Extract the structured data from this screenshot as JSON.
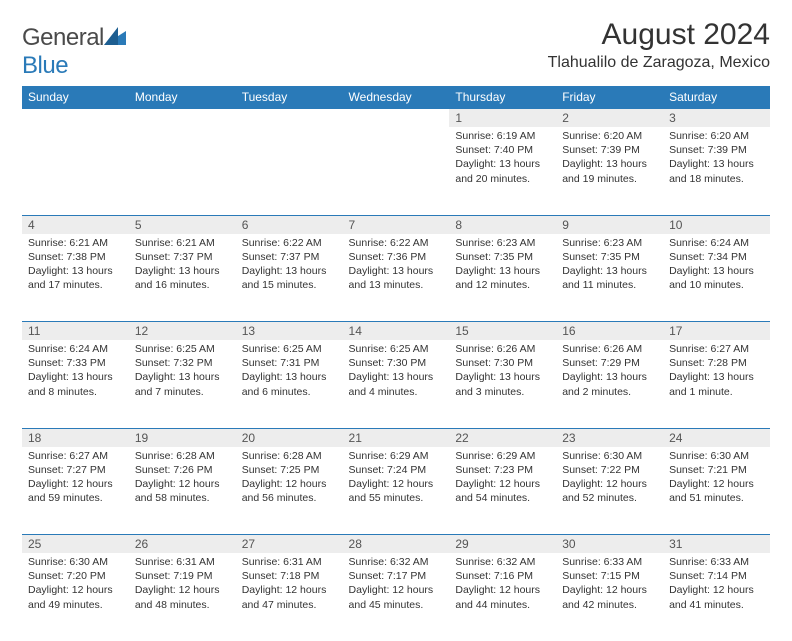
{
  "brand": {
    "name_a": "General",
    "name_b": "Blue"
  },
  "header": {
    "title": "August 2024",
    "location": "Tlahualilo de Zaragoza, Mexico"
  },
  "colors": {
    "accent": "#2a7ab8",
    "header_bg": "#2a7ab8",
    "daynum_bg": "#ededed",
    "text": "#333333"
  },
  "weekdays": [
    "Sunday",
    "Monday",
    "Tuesday",
    "Wednesday",
    "Thursday",
    "Friday",
    "Saturday"
  ],
  "weeks": [
    {
      "nums": [
        "",
        "",
        "",
        "",
        "1",
        "2",
        "3"
      ],
      "cells": [
        null,
        null,
        null,
        null,
        {
          "sunrise": "Sunrise: 6:19 AM",
          "sunset": "Sunset: 7:40 PM",
          "daylight": "Daylight: 13 hours and 20 minutes."
        },
        {
          "sunrise": "Sunrise: 6:20 AM",
          "sunset": "Sunset: 7:39 PM",
          "daylight": "Daylight: 13 hours and 19 minutes."
        },
        {
          "sunrise": "Sunrise: 6:20 AM",
          "sunset": "Sunset: 7:39 PM",
          "daylight": "Daylight: 13 hours and 18 minutes."
        }
      ]
    },
    {
      "nums": [
        "4",
        "5",
        "6",
        "7",
        "8",
        "9",
        "10"
      ],
      "cells": [
        {
          "sunrise": "Sunrise: 6:21 AM",
          "sunset": "Sunset: 7:38 PM",
          "daylight": "Daylight: 13 hours and 17 minutes."
        },
        {
          "sunrise": "Sunrise: 6:21 AM",
          "sunset": "Sunset: 7:37 PM",
          "daylight": "Daylight: 13 hours and 16 minutes."
        },
        {
          "sunrise": "Sunrise: 6:22 AM",
          "sunset": "Sunset: 7:37 PM",
          "daylight": "Daylight: 13 hours and 15 minutes."
        },
        {
          "sunrise": "Sunrise: 6:22 AM",
          "sunset": "Sunset: 7:36 PM",
          "daylight": "Daylight: 13 hours and 13 minutes."
        },
        {
          "sunrise": "Sunrise: 6:23 AM",
          "sunset": "Sunset: 7:35 PM",
          "daylight": "Daylight: 13 hours and 12 minutes."
        },
        {
          "sunrise": "Sunrise: 6:23 AM",
          "sunset": "Sunset: 7:35 PM",
          "daylight": "Daylight: 13 hours and 11 minutes."
        },
        {
          "sunrise": "Sunrise: 6:24 AM",
          "sunset": "Sunset: 7:34 PM",
          "daylight": "Daylight: 13 hours and 10 minutes."
        }
      ]
    },
    {
      "nums": [
        "11",
        "12",
        "13",
        "14",
        "15",
        "16",
        "17"
      ],
      "cells": [
        {
          "sunrise": "Sunrise: 6:24 AM",
          "sunset": "Sunset: 7:33 PM",
          "daylight": "Daylight: 13 hours and 8 minutes."
        },
        {
          "sunrise": "Sunrise: 6:25 AM",
          "sunset": "Sunset: 7:32 PM",
          "daylight": "Daylight: 13 hours and 7 minutes."
        },
        {
          "sunrise": "Sunrise: 6:25 AM",
          "sunset": "Sunset: 7:31 PM",
          "daylight": "Daylight: 13 hours and 6 minutes."
        },
        {
          "sunrise": "Sunrise: 6:25 AM",
          "sunset": "Sunset: 7:30 PM",
          "daylight": "Daylight: 13 hours and 4 minutes."
        },
        {
          "sunrise": "Sunrise: 6:26 AM",
          "sunset": "Sunset: 7:30 PM",
          "daylight": "Daylight: 13 hours and 3 minutes."
        },
        {
          "sunrise": "Sunrise: 6:26 AM",
          "sunset": "Sunset: 7:29 PM",
          "daylight": "Daylight: 13 hours and 2 minutes."
        },
        {
          "sunrise": "Sunrise: 6:27 AM",
          "sunset": "Sunset: 7:28 PM",
          "daylight": "Daylight: 13 hours and 1 minute."
        }
      ]
    },
    {
      "nums": [
        "18",
        "19",
        "20",
        "21",
        "22",
        "23",
        "24"
      ],
      "cells": [
        {
          "sunrise": "Sunrise: 6:27 AM",
          "sunset": "Sunset: 7:27 PM",
          "daylight": "Daylight: 12 hours and 59 minutes."
        },
        {
          "sunrise": "Sunrise: 6:28 AM",
          "sunset": "Sunset: 7:26 PM",
          "daylight": "Daylight: 12 hours and 58 minutes."
        },
        {
          "sunrise": "Sunrise: 6:28 AM",
          "sunset": "Sunset: 7:25 PM",
          "daylight": "Daylight: 12 hours and 56 minutes."
        },
        {
          "sunrise": "Sunrise: 6:29 AM",
          "sunset": "Sunset: 7:24 PM",
          "daylight": "Daylight: 12 hours and 55 minutes."
        },
        {
          "sunrise": "Sunrise: 6:29 AM",
          "sunset": "Sunset: 7:23 PM",
          "daylight": "Daylight: 12 hours and 54 minutes."
        },
        {
          "sunrise": "Sunrise: 6:30 AM",
          "sunset": "Sunset: 7:22 PM",
          "daylight": "Daylight: 12 hours and 52 minutes."
        },
        {
          "sunrise": "Sunrise: 6:30 AM",
          "sunset": "Sunset: 7:21 PM",
          "daylight": "Daylight: 12 hours and 51 minutes."
        }
      ]
    },
    {
      "nums": [
        "25",
        "26",
        "27",
        "28",
        "29",
        "30",
        "31"
      ],
      "cells": [
        {
          "sunrise": "Sunrise: 6:30 AM",
          "sunset": "Sunset: 7:20 PM",
          "daylight": "Daylight: 12 hours and 49 minutes."
        },
        {
          "sunrise": "Sunrise: 6:31 AM",
          "sunset": "Sunset: 7:19 PM",
          "daylight": "Daylight: 12 hours and 48 minutes."
        },
        {
          "sunrise": "Sunrise: 6:31 AM",
          "sunset": "Sunset: 7:18 PM",
          "daylight": "Daylight: 12 hours and 47 minutes."
        },
        {
          "sunrise": "Sunrise: 6:32 AM",
          "sunset": "Sunset: 7:17 PM",
          "daylight": "Daylight: 12 hours and 45 minutes."
        },
        {
          "sunrise": "Sunrise: 6:32 AM",
          "sunset": "Sunset: 7:16 PM",
          "daylight": "Daylight: 12 hours and 44 minutes."
        },
        {
          "sunrise": "Sunrise: 6:33 AM",
          "sunset": "Sunset: 7:15 PM",
          "daylight": "Daylight: 12 hours and 42 minutes."
        },
        {
          "sunrise": "Sunrise: 6:33 AM",
          "sunset": "Sunset: 7:14 PM",
          "daylight": "Daylight: 12 hours and 41 minutes."
        }
      ]
    }
  ]
}
